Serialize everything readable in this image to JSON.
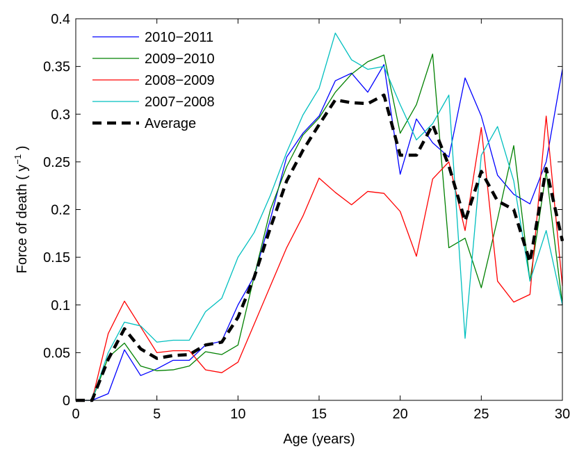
{
  "chart_data": {
    "type": "line",
    "title": "",
    "xlabel": "Age (years)",
    "ylabel": "Force of death ( y",
    "ylabel_sup": "−1",
    "ylabel_close": " )",
    "xlim": [
      0,
      30
    ],
    "ylim": [
      0,
      0.4
    ],
    "xticks": [
      0,
      5,
      10,
      15,
      20,
      25,
      30
    ],
    "xtick_labels": [
      "0",
      "5",
      "10",
      "15",
      "20",
      "25",
      "30"
    ],
    "yticks": [
      0,
      0.05,
      0.1,
      0.15,
      0.2,
      0.25,
      0.3,
      0.35,
      0.4
    ],
    "ytick_labels": [
      "0",
      "0.05",
      "0.1",
      "0.15",
      "0.2",
      "0.25",
      "0.3",
      "0.35",
      "0.4"
    ],
    "grid": false,
    "legend_position": "top-left",
    "x": [
      0,
      1,
      2,
      3,
      4,
      5,
      6,
      7,
      8,
      9,
      10,
      11,
      12,
      13,
      14,
      15,
      16,
      17,
      18,
      19,
      20,
      21,
      22,
      23,
      24,
      25,
      26,
      27,
      28,
      29,
      30
    ],
    "series": [
      {
        "name": "2010−2011",
        "color": "#0000ff",
        "dashed": false,
        "values": [
          0,
          0,
          0.007,
          0.053,
          0.026,
          0.033,
          0.042,
          0.042,
          0.058,
          0.062,
          0.1,
          0.13,
          0.19,
          0.255,
          0.28,
          0.298,
          0.335,
          0.343,
          0.323,
          0.352,
          0.237,
          0.295,
          0.27,
          0.255,
          0.338,
          0.298,
          0.236,
          0.216,
          0.206,
          0.25,
          0.347
        ]
      },
      {
        "name": "2009−2010",
        "color": "#008000",
        "dashed": false,
        "values": [
          0,
          0,
          0.045,
          0.06,
          0.036,
          0.031,
          0.032,
          0.036,
          0.051,
          0.048,
          0.058,
          0.13,
          0.2,
          0.245,
          0.278,
          0.296,
          0.323,
          0.342,
          0.355,
          0.362,
          0.28,
          0.31,
          0.363,
          0.16,
          0.17,
          0.118,
          0.19,
          0.267,
          0.125,
          0.24,
          0.1
        ]
      },
      {
        "name": "2008−2009",
        "color": "#ff0000",
        "dashed": false,
        "values": [
          0,
          0,
          0.07,
          0.104,
          0.077,
          0.05,
          0.052,
          0.052,
          0.032,
          0.029,
          0.04,
          0.08,
          0.12,
          0.16,
          0.193,
          0.233,
          0.218,
          0.205,
          0.219,
          0.217,
          0.198,
          0.151,
          0.232,
          0.25,
          0.178,
          0.286,
          0.125,
          0.103,
          0.111,
          0.298,
          0.12
        ]
      },
      {
        "name": "2007−2008",
        "color": "#00bfbf",
        "dashed": false,
        "values": [
          0,
          0,
          0.05,
          0.082,
          0.078,
          0.061,
          0.063,
          0.063,
          0.093,
          0.107,
          0.15,
          0.176,
          0.215,
          0.26,
          0.299,
          0.327,
          0.385,
          0.357,
          0.347,
          0.35,
          0.31,
          0.273,
          0.29,
          0.32,
          0.065,
          0.257,
          0.287,
          0.23,
          0.125,
          0.178,
          0.1
        ]
      },
      {
        "name": "Average",
        "color": "#000000",
        "dashed": true,
        "values": [
          0,
          0,
          0.043,
          0.075,
          0.054,
          0.044,
          0.047,
          0.048,
          0.058,
          0.061,
          0.087,
          0.129,
          0.181,
          0.23,
          0.262,
          0.289,
          0.315,
          0.312,
          0.311,
          0.32,
          0.257,
          0.257,
          0.289,
          0.246,
          0.188,
          0.24,
          0.209,
          0.2,
          0.145,
          0.243,
          0.167
        ]
      }
    ]
  }
}
